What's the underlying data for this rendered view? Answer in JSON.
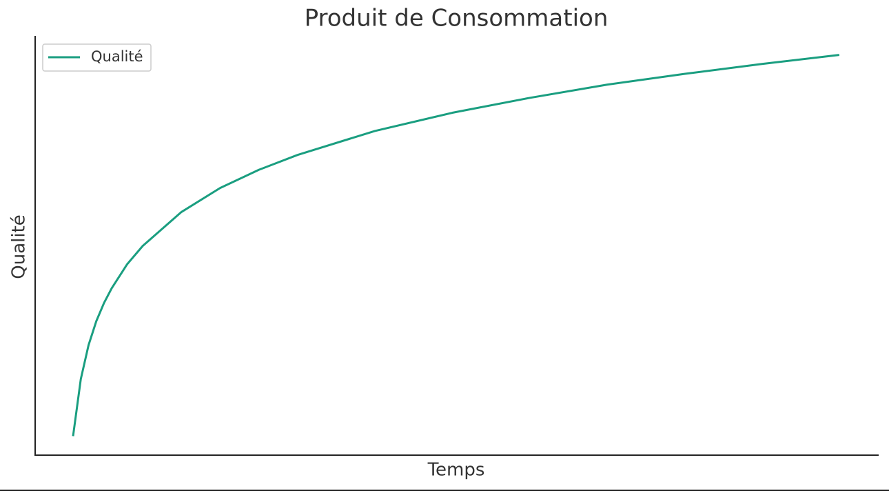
{
  "chart_data": {
    "type": "line",
    "title": "Produit de Consommation",
    "xlabel": "Temps",
    "ylabel": "Qualité",
    "x": [
      1,
      2,
      3,
      4,
      5,
      6,
      8,
      10,
      15,
      20,
      25,
      30,
      40,
      50,
      60,
      70,
      80,
      90,
      100
    ],
    "series": [
      {
        "name": "Qualité",
        "color": "#1a9e80",
        "values": [
          0,
          0.69,
          1.1,
          1.39,
          1.61,
          1.79,
          2.08,
          2.3,
          2.71,
          3.0,
          3.22,
          3.4,
          3.69,
          3.91,
          4.09,
          4.25,
          4.38,
          4.5,
          4.61
        ]
      }
    ],
    "xlim": [
      -3.9,
      105
    ],
    "ylim": [
      -0.23,
      4.84
    ],
    "legend": "upper left"
  }
}
